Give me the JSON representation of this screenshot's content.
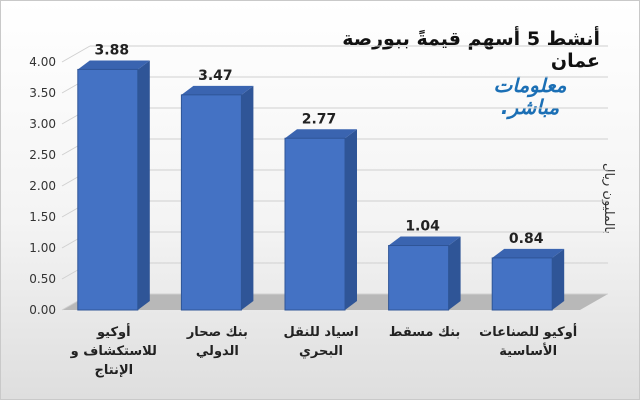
{
  "chart_data": {
    "type": "bar",
    "title": "أنشط 5 أسهم قيمةً ببورصة عمان",
    "ylabel": "بالمليون ريال",
    "categories": [
      [
        "أوكيو",
        "للاستكشاف و",
        "الإنتاج"
      ],
      [
        "بنك صحار",
        "الدولي"
      ],
      [
        "اسياد للنقل",
        "البحري"
      ],
      [
        "بنك مسقط"
      ],
      [
        "أوكيو للصناعات",
        "الأساسية"
      ]
    ],
    "values": [
      3.88,
      3.47,
      2.77,
      1.04,
      0.84
    ],
    "value_labels": [
      "3.88",
      "3.47",
      "2.77",
      "1.04",
      "0.84"
    ],
    "ylim": [
      0,
      4
    ],
    "yticks": [
      "0.00",
      "0.50",
      "1.00",
      "1.50",
      "2.00",
      "2.50",
      "3.00",
      "3.50",
      "4.00"
    ],
    "grid": true,
    "bar_color": "#4472c4"
  },
  "brand": {
    "line1": "معلومات",
    "line2": "مباشر."
  }
}
